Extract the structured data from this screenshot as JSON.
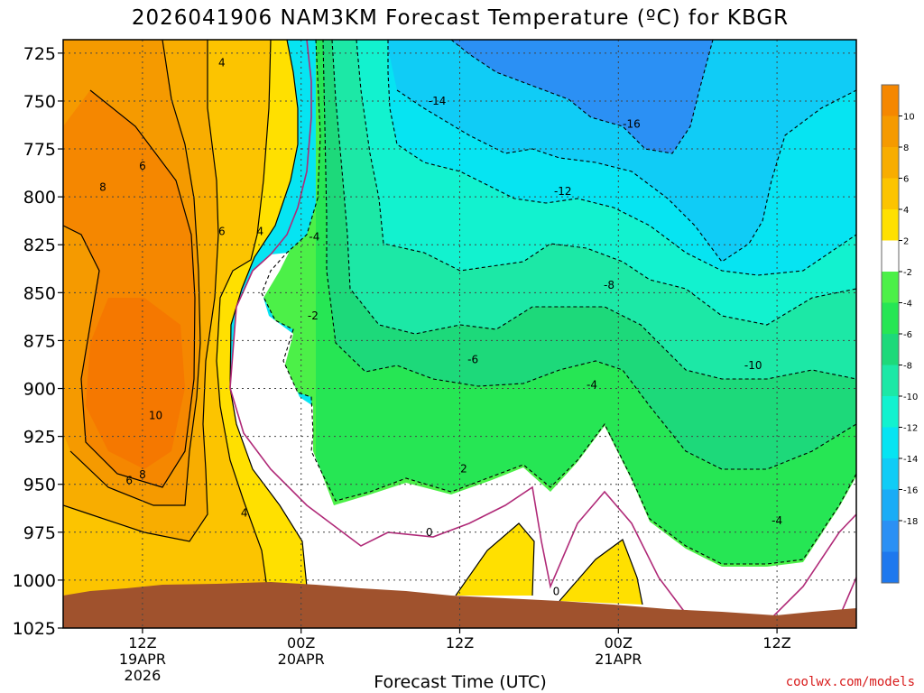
{
  "chart_data": {
    "type": "heatmap",
    "title": "2026041906 NAM3KM Forecast Temperature (ºC) for KBGR",
    "xlabel": "Forecast Time (UTC)",
    "ylabel": "",
    "credit": "coolwx.com/models",
    "y_axis": {
      "label": "",
      "scale": "pressure (hPa), inverted",
      "ylim": [
        1025,
        718
      ],
      "ticks": [
        "725",
        "750",
        "775",
        "800",
        "825",
        "850",
        "875",
        "900",
        "925",
        "950",
        "975",
        "1000",
        "1025"
      ]
    },
    "x_axis": {
      "xlim_hours_from_init": [
        0,
        60
      ],
      "ticks": [
        {
          "hour": 6,
          "lines": [
            "12Z",
            "19APR",
            "2026"
          ]
        },
        {
          "hour": 18,
          "lines": [
            "00Z",
            "20APR"
          ]
        },
        {
          "hour": 30,
          "lines": [
            "12Z"
          ]
        },
        {
          "hour": 42,
          "lines": [
            "00Z",
            "21APR"
          ]
        },
        {
          "hour": 54,
          "lines": [
            "12Z"
          ]
        }
      ]
    },
    "grid": true,
    "colorbar": {
      "placement": "right",
      "labels": [
        "10",
        "8",
        "6",
        "4",
        "2",
        "-2",
        "-4",
        "-6",
        "-8",
        "-10",
        "-12",
        "-14",
        "-16",
        "-18"
      ],
      "colors": [
        "#f58700",
        "#f59a00",
        "#f8ad00",
        "#fcc400",
        "#ffe000",
        "#ffffff",
        "#4cf048",
        "#26e654",
        "#1dd97a",
        "#1ce8a6",
        "#12f2cf",
        "#06e4f2",
        "#10ccf6",
        "#1aacf6",
        "#2b90f4",
        "#1e78ee"
      ]
    },
    "contour_labels": [
      {
        "text": "4",
        "hour": 12.0,
        "p": 730
      },
      {
        "text": "6",
        "hour": 6.0,
        "p": 784
      },
      {
        "text": "8",
        "hour": 3.0,
        "p": 795
      },
      {
        "text": "6",
        "hour": 12.0,
        "p": 818
      },
      {
        "text": "4",
        "hour": 14.9,
        "p": 818
      },
      {
        "text": "10",
        "hour": 7.0,
        "p": 914
      },
      {
        "text": "6",
        "hour": 5.0,
        "p": 948
      },
      {
        "text": "8",
        "hour": 6.0,
        "p": 945
      },
      {
        "text": "4",
        "hour": 13.7,
        "p": 965
      },
      {
        "text": "-4",
        "hour": 19.0,
        "p": 821
      },
      {
        "text": "-2",
        "hour": 18.9,
        "p": 862
      },
      {
        "text": "-14",
        "hour": 28.3,
        "p": 750
      },
      {
        "text": "-16",
        "hour": 43.0,
        "p": 762
      },
      {
        "text": "-12",
        "hour": 37.8,
        "p": 797
      },
      {
        "text": "-8",
        "hour": 41.3,
        "p": 846
      },
      {
        "text": "-6",
        "hour": 31.0,
        "p": 885
      },
      {
        "text": "-4",
        "hour": 40.0,
        "p": 898
      },
      {
        "text": "-10",
        "hour": 52.2,
        "p": 888
      },
      {
        "text": "-4",
        "hour": 54.0,
        "p": 969
      },
      {
        "text": "2",
        "hour": 30.3,
        "p": 942
      },
      {
        "text": "0",
        "hour": 27.7,
        "p": 975
      },
      {
        "text": "0",
        "hour": 37.3,
        "p": 1006
      }
    ]
  }
}
